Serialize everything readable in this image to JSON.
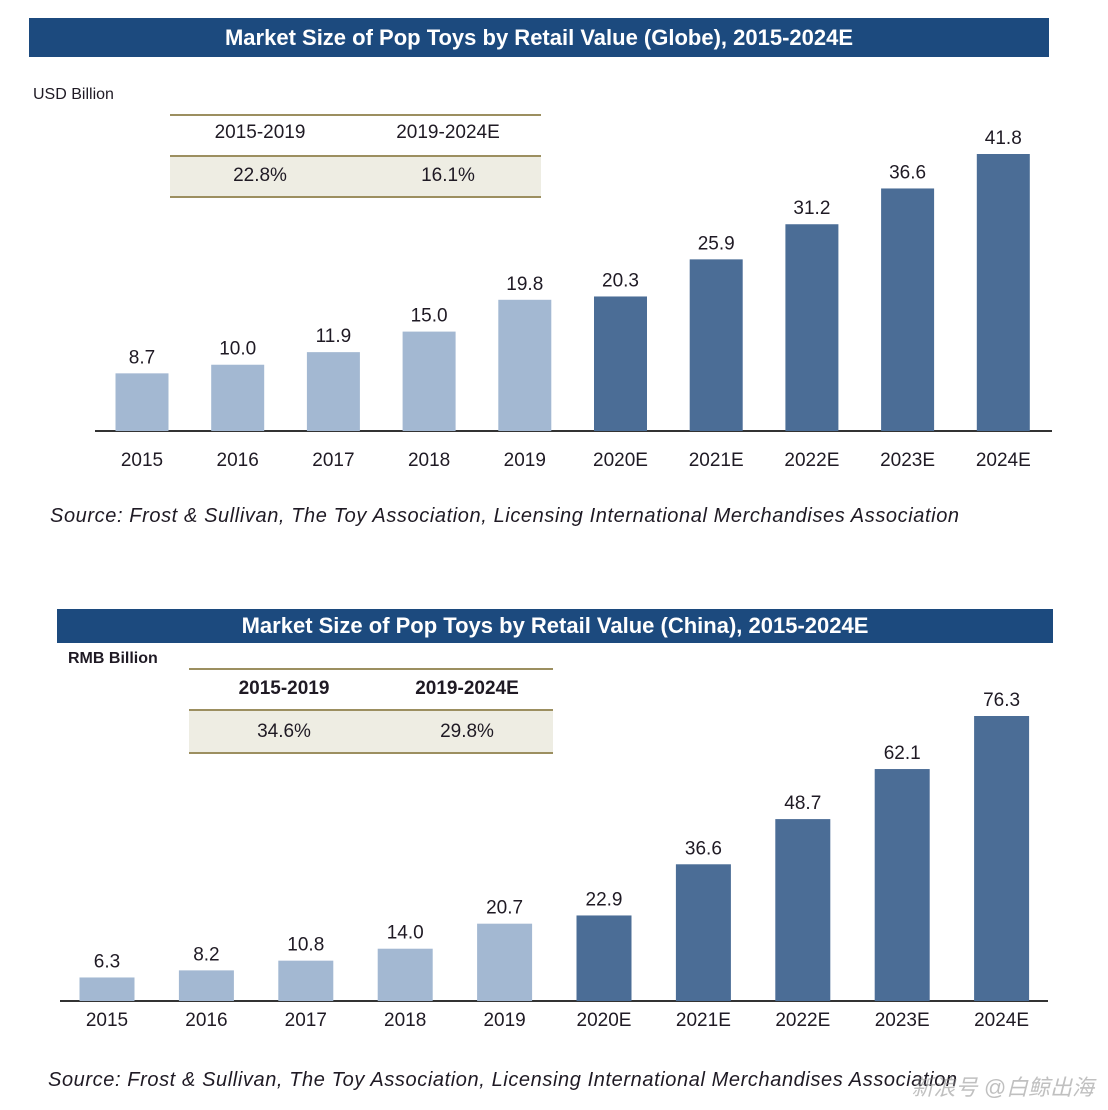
{
  "chart_data": [
    {
      "type": "bar",
      "title": "Market Size of Pop Toys by Retail Value (Globe), 2015-2024E",
      "ylabel": "USD Billion",
      "xlabel": "",
      "categories": [
        "2015",
        "2016",
        "2017",
        "2018",
        "2019",
        "2020E",
        "2021E",
        "2022E",
        "2023E",
        "2024E"
      ],
      "values": [
        8.7,
        10.0,
        11.9,
        15.0,
        19.8,
        20.3,
        25.9,
        31.2,
        36.6,
        41.8
      ],
      "value_labels": [
        "8.7",
        "10.0",
        "11.9",
        "15.0",
        "19.8",
        "20.3",
        "25.9",
        "31.2",
        "36.6",
        "41.8"
      ],
      "historical_count": 5,
      "ylim": [
        0,
        45
      ],
      "grid": false,
      "cagr_table": {
        "headers": [
          "2015-2019",
          "2019-2024E"
        ],
        "values": [
          "22.8%",
          "16.1%"
        ]
      },
      "source": "Source: Frost & Sullivan, The Toy Association, Licensing International Merchandises Association"
    },
    {
      "type": "bar",
      "title": "Market Size of Pop Toys by Retail Value (China), 2015-2024E",
      "ylabel": "RMB Billion",
      "xlabel": "",
      "categories": [
        "2015",
        "2016",
        "2017",
        "2018",
        "2019",
        "2020E",
        "2021E",
        "2022E",
        "2023E",
        "2024E"
      ],
      "values": [
        6.3,
        8.2,
        10.8,
        14.0,
        20.7,
        22.9,
        36.6,
        48.7,
        62.1,
        76.3
      ],
      "value_labels": [
        "6.3",
        "8.2",
        "10.8",
        "14.0",
        "20.7",
        "22.9",
        "36.6",
        "48.7",
        "62.1",
        "76.3"
      ],
      "historical_count": 5,
      "ylim": [
        0,
        80
      ],
      "grid": false,
      "cagr_table": {
        "headers": [
          "2015-2019",
          "2019-2024E"
        ],
        "values": [
          "34.6%",
          "29.8%"
        ]
      },
      "source": "Source: Frost & Sullivan, The Toy Association, Licensing International Merchandises Association"
    }
  ],
  "colors": {
    "banner": "#1c4a7e",
    "historical_bar": "#a3b8d2",
    "forecast_bar": "#4b6d96",
    "axis": "#333333"
  },
  "watermark": "新浪号 @白鲸出海"
}
